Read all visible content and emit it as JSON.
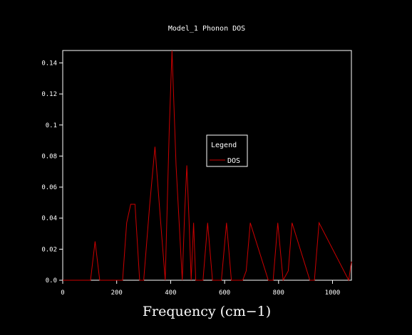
{
  "chart_data": {
    "type": "line",
    "title": "Model_1 Phonon DOS",
    "xlabel": "Frequency (cm−1)",
    "ylabel": "",
    "xlim": [
      0,
      1070
    ],
    "ylim": [
      0,
      0.148
    ],
    "x_ticks": [
      0,
      200,
      400,
      600,
      800,
      1000
    ],
    "x_tick_labels": [
      "0",
      "200",
      "400",
      "600",
      "800",
      "1000"
    ],
    "y_ticks": [
      0,
      0.02,
      0.04,
      0.06,
      0.08,
      0.1,
      0.12,
      0.14
    ],
    "y_tick_labels": [
      "0.0",
      "0.02",
      "0.04",
      "0.06",
      "0.08",
      "0.1",
      "0.12",
      "0.14"
    ],
    "grid": false,
    "legend": {
      "title": "Legend",
      "placement": "center-right"
    },
    "series": [
      {
        "name": "DOS",
        "color": "#cc0000",
        "x": [
          0,
          103,
          120,
          137,
          222,
          237,
          252,
          268,
          285,
          300,
          322,
          342,
          360,
          380,
          395,
          405,
          420,
          443,
          452,
          460,
          468,
          476,
          485,
          493,
          505,
          520,
          537,
          555,
          570,
          588,
          607,
          625,
          667,
          680,
          695,
          762,
          780,
          797,
          817,
          836,
          850,
          916,
          933,
          950,
          1060,
          1070
        ],
        "y": [
          0,
          0,
          0.025,
          0,
          0,
          0.037,
          0.049,
          0.049,
          0,
          0,
          0.048,
          0.086,
          0.044,
          0,
          0.098,
          0.148,
          0.074,
          0,
          0.044,
          0.074,
          0.04,
          0,
          0.037,
          0,
          0,
          0,
          0.037,
          0,
          0,
          0,
          0.037,
          0,
          0,
          0.006,
          0.037,
          0,
          0,
          0.037,
          0,
          0.006,
          0.037,
          0,
          0,
          0.037,
          0,
          0.012
        ]
      }
    ]
  }
}
